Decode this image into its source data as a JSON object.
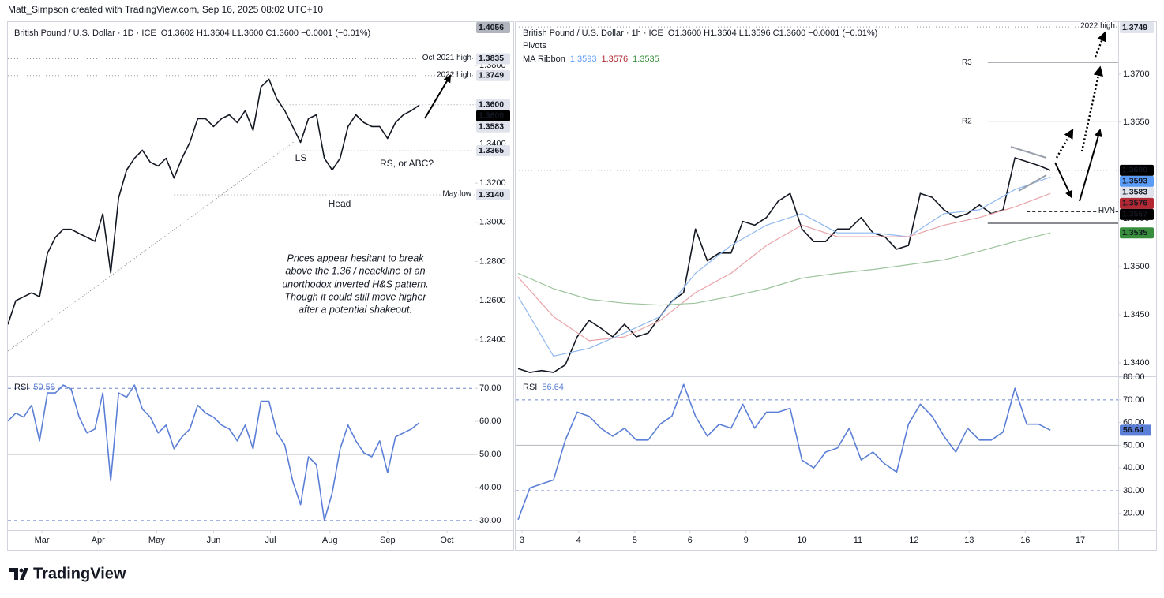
{
  "header": {
    "text": "Matt_Simpson created with TradingView.com, Sep 16, 2025 08:02 UTC+10"
  },
  "footer": {
    "logo": "TradingView"
  },
  "chart_data": [
    {
      "type": "line",
      "title": "British Pound / U.S. Dollar · 1D · ICE",
      "ohlc": "O1.3602 H1.3604 L1.3600 C1.3600 −0.0001 (−0.01%)",
      "xlim": [
        0,
        59
      ],
      "ylim": [
        1.2214,
        1.4022
      ],
      "yticks": [
        {
          "value": 1.24,
          "label": "1.2400"
        },
        {
          "value": 1.26,
          "label": "1.2600"
        },
        {
          "value": 1.28,
          "label": "1.2800"
        },
        {
          "value": 1.3,
          "label": "1.3000"
        },
        {
          "value": 1.32,
          "label": "1.3200"
        },
        {
          "value": 1.34,
          "label": "1.3400"
        },
        {
          "value": 1.36,
          "label": "1.3600"
        },
        {
          "value": 1.38,
          "label": "1.3800"
        }
      ],
      "series": [
        {
          "color": "#131722",
          "values": [
            1.2479,
            1.26,
            1.262,
            1.264,
            1.262,
            1.2842,
            1.2923,
            1.2964,
            1.2964,
            1.2943,
            1.2923,
            1.2903,
            1.3044,
            1.2742,
            1.3125,
            1.3267,
            1.3327,
            1.3368,
            1.3307,
            1.3287,
            1.3327,
            1.3226,
            1.3327,
            1.3408,
            1.3529,
            1.3529,
            1.3489,
            1.3529,
            1.3549,
            1.3509,
            1.357,
            1.3469,
            1.3691,
            1.3731,
            1.363,
            1.357,
            1.3489,
            1.3408,
            1.3529,
            1.3549,
            1.3327,
            1.3267,
            1.3327,
            1.3489,
            1.3549,
            1.3509,
            1.3489,
            1.3489,
            1.3428,
            1.3509,
            1.3549,
            1.357,
            1.3598
          ]
        }
      ],
      "levels": [
        {
          "name": "Oct 2021 high",
          "value": 1.3835,
          "style": "dotted",
          "start": 0
        },
        {
          "name": "2022 high",
          "value": 1.3749,
          "style": "dotted",
          "start": 0
        },
        {
          "name": "May low",
          "value": 1.314,
          "style": "dotted",
          "start": 21
        }
      ],
      "lines": [
        {
          "value": 1.36,
          "style": "dotted",
          "start": 34
        },
        {
          "value": 1.3365,
          "style": "dotted",
          "start": 37
        }
      ],
      "price_labels": [
        1.4056,
        1.3835,
        1.3749,
        {
          "value": 1.36,
          "label": "1.3600"
        },
        {
          "value": 1.36,
          "label": "1.3600"
        },
        1.3583,
        1.3365,
        {
          "value": 1.314,
          "label": "1.3140"
        }
      ],
      "price_label_colors": [
        "#b2b5be",
        "#e0e3eb",
        "#e0e3eb",
        "#e0e3eb",
        "#000000",
        "#e0e3eb",
        "#e0e3eb",
        "#e0e3eb"
      ],
      "labels": {
        "ls": "LS",
        "head": "Head",
        "rs": "RS, or ABC?"
      },
      "note": [
        "Prices appear hesitant to break",
        "above the 1.36 / neackline of an",
        "unorthodox inverted H&S pattern.",
        "Though it could still move higher",
        "after a potential shakeout."
      ]
    },
    {
      "type": "line",
      "rsi_label": "RSI",
      "last": 59.58,
      "xlim": [
        0,
        59
      ],
      "ylim": [
        27.1,
        73.4
      ],
      "yticks": [
        {
          "value": 30,
          "label": "30.00"
        },
        {
          "value": 40,
          "label": "40.00"
        },
        {
          "value": 50,
          "label": "50.00"
        },
        {
          "value": 60,
          "label": "60.00"
        },
        {
          "value": 70,
          "label": "70.00"
        }
      ],
      "xticks": [
        {
          "value": 4.3,
          "label": "Mar"
        },
        {
          "value": 11.4,
          "label": "Apr"
        },
        {
          "value": 18.8,
          "label": "May"
        },
        {
          "value": 26,
          "label": "Jun"
        },
        {
          "value": 33.2,
          "label": "Jul"
        },
        {
          "value": 40.7,
          "label": "Aug"
        },
        {
          "value": 48,
          "label": "Sep"
        },
        {
          "value": 55.5,
          "label": "Oct"
        }
      ],
      "dashed_levels": [
        70,
        30
      ],
      "solid_levels": [
        50
      ],
      "series": [
        {
          "color": "#5b7fd6",
          "values": [
            60.1,
            62.5,
            61.3,
            64.9,
            54.1,
            68.6,
            68.6,
            71.0,
            69.8,
            61.3,
            56.5,
            57.7,
            68.6,
            42.0,
            68.6,
            67.3,
            71.0,
            63.7,
            61.3,
            56.5,
            58.9,
            51.7,
            55.3,
            57.7,
            64.9,
            62.5,
            61.3,
            58.9,
            57.7,
            54.1,
            58.9,
            51.7,
            66.1,
            66.1,
            56.5,
            52.9,
            42.0,
            34.8,
            49.3,
            46.9,
            30.0,
            38.4,
            51.7,
            58.9,
            54.1,
            50.5,
            49.3,
            54.1,
            44.5,
            55.3,
            56.5,
            57.7,
            59.58
          ]
        }
      ]
    },
    {
      "type": "line",
      "title": "British Pound / U.S. Dollar · 1h · ICE",
      "ohlc": "O1.3600 H1.3604 L1.3596 C1.3600 −0.0001 (−0.01%)",
      "pivots_label": "Pivots",
      "ribbon_label": "MA Ribbon",
      "xlim": [
        -0.2,
        50.73
      ],
      "ylim": [
        1.3386,
        1.3754
      ],
      "yticks": [
        {
          "value": 1.34,
          "label": "1.3400"
        },
        {
          "value": 1.345,
          "label": "1.3450"
        },
        {
          "value": 1.35,
          "label": "1.3500"
        },
        {
          "value": 1.355,
          "label": "1.3550"
        },
        {
          "value": 1.36,
          "label": "1.3600"
        },
        {
          "value": 1.365,
          "label": "1.3650"
        },
        {
          "value": 1.37,
          "label": "1.3700"
        }
      ],
      "series": [
        {
          "color": "#131722",
          "values": [
            1.3394,
            1.339,
            1.3392,
            1.339,
            1.3398,
            1.3427,
            1.3444,
            1.3436,
            1.3427,
            1.344,
            1.3427,
            1.3431,
            1.3448,
            1.3464,
            1.3473,
            1.3539,
            1.3506,
            1.3514,
            1.3514,
            1.3547,
            1.3543,
            1.3551,
            1.3568,
            1.3576,
            1.3539,
            1.3526,
            1.3526,
            1.3539,
            1.3539,
            1.3551,
            1.3535,
            1.3531,
            1.3518,
            1.3522,
            1.3576,
            1.3572,
            1.3559,
            1.3551,
            1.3555,
            1.3564,
            1.3555,
            1.3559,
            1.3613,
            1.3609,
            1.3605,
            1.36
          ]
        },
        {
          "color": "#8fb8f0",
          "legend_value": 1.3593,
          "x": [
            0,
            3,
            6,
            9,
            12,
            15,
            18,
            21,
            24,
            27,
            30,
            33,
            36,
            39,
            42,
            45
          ],
          "values": [
            1.3469,
            1.3407,
            1.3415,
            1.3431,
            1.3448,
            1.3493,
            1.3522,
            1.3543,
            1.3555,
            1.3535,
            1.3535,
            1.3531,
            1.3555,
            1.3559,
            1.358,
            1.3593
          ]
        },
        {
          "color": "#e8a3a8",
          "legend_value": 1.3576,
          "x": [
            0,
            3,
            6,
            9,
            12,
            15,
            18,
            21,
            24,
            27,
            30,
            33,
            36,
            39,
            42,
            45
          ],
          "values": [
            1.3489,
            1.3448,
            1.3423,
            1.3427,
            1.3444,
            1.3473,
            1.3493,
            1.3522,
            1.3543,
            1.3531,
            1.3531,
            1.3531,
            1.3543,
            1.3551,
            1.3562,
            1.3576
          ]
        },
        {
          "color": "#9cc49c",
          "legend_value": 1.3535,
          "x": [
            0,
            3,
            6,
            9,
            12,
            15,
            18,
            21,
            24,
            27,
            30,
            33,
            36,
            39,
            42,
            45
          ],
          "values": [
            1.3493,
            1.3477,
            1.3466,
            1.3462,
            1.346,
            1.3462,
            1.3469,
            1.3477,
            1.3488,
            1.3493,
            1.3497,
            1.3502,
            1.3507,
            1.3516,
            1.3526,
            1.3535
          ]
        }
      ],
      "legend_colors": [
        "#5b9cf6",
        "#b22833",
        "#388e3c"
      ],
      "levels": [
        {
          "name": "2022 high",
          "value": 1.3749,
          "style": "dotted",
          "start": -0.2
        },
        {
          "name": "R3",
          "value": 1.3712,
          "style": "pivot",
          "start": 39.7
        },
        {
          "name": "R2",
          "value": 1.3651,
          "style": "pivot",
          "start": 39.7
        },
        {
          "name": "HVN",
          "value": 1.3557,
          "style": "dashed",
          "start": 43
        }
      ],
      "lines": [
        {
          "value": 1.36,
          "style": "dotted",
          "start": -0.2
        },
        {
          "value": 1.3545,
          "style": "solid",
          "start": 39.7
        }
      ],
      "price_labels": [
        1.3749,
        {
          "value": 1.36,
          "label": "1.3600"
        },
        1.3593,
        1.3583,
        1.3576,
        1.3557,
        1.3535
      ],
      "price_label_colors": [
        "#e0e3eb",
        "#000000",
        "#5b9cf6",
        "#e0e3eb",
        "#b22833",
        "#000000",
        "#388e3c"
      ]
    },
    {
      "type": "line",
      "rsi_label": "RSI",
      "last": 56.64,
      "last_box": true,
      "xlim": [
        -0.2,
        50.73
      ],
      "ylim": [
        12.6,
        80.04
      ],
      "yticks": [
        {
          "value": 20,
          "label": "20.00"
        },
        {
          "value": 30,
          "label": "30.00"
        },
        {
          "value": 40,
          "label": "40.00"
        },
        {
          "value": 50,
          "label": "50.00"
        },
        {
          "value": 60,
          "label": "60.00"
        },
        {
          "value": 70,
          "label": "70.00"
        },
        {
          "value": 80,
          "label": "80.00"
        }
      ],
      "xticks": [
        {
          "value": 0.33,
          "label": "3"
        },
        {
          "value": 5.13,
          "label": "4"
        },
        {
          "value": 9.87,
          "label": "5"
        },
        {
          "value": 14.53,
          "label": "6"
        },
        {
          "value": 19.27,
          "label": "9"
        },
        {
          "value": 24,
          "label": "10"
        },
        {
          "value": 28.73,
          "label": "11"
        },
        {
          "value": 33.47,
          "label": "12"
        },
        {
          "value": 38.13,
          "label": "13"
        },
        {
          "value": 42.87,
          "label": "16"
        },
        {
          "value": 47.53,
          "label": "17"
        }
      ],
      "dashed_levels": [
        70,
        30
      ],
      "solid_levels": [
        50
      ],
      "series": [
        {
          "color": "#5b7fd6",
          "values": [
            17.2,
            31.2,
            33.0,
            34.7,
            52.3,
            64.6,
            62.8,
            57.5,
            54.0,
            57.5,
            52.3,
            52.3,
            59.3,
            62.8,
            76.8,
            62.8,
            54.0,
            59.3,
            57.5,
            68.1,
            57.5,
            64.6,
            64.6,
            66.3,
            43.5,
            40.0,
            47.0,
            48.8,
            57.5,
            43.5,
            47.0,
            41.8,
            38.2,
            59.3,
            68.1,
            62.8,
            54.0,
            47.0,
            57.5,
            52.3,
            52.3,
            55.8,
            75.1,
            59.3,
            59.3,
            56.64
          ]
        }
      ]
    }
  ]
}
